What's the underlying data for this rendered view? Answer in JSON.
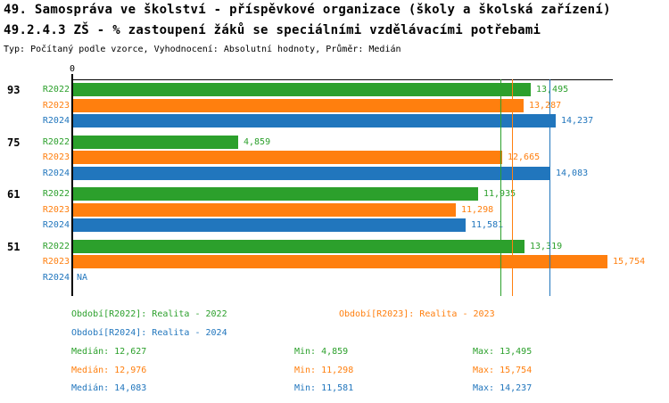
{
  "title": {
    "line1": "49. Samospráva ve školství - příspěvkové organizace (školy a školská zařízení)",
    "line2": "49.2.4.3 ZŠ - % zastoupení žáků se speciálními vzdělávacími potřebami",
    "meta": "Typ: Počítaný podle vzorce, Vyhodnocení: Absolutní hodnoty, Průměr: Medián"
  },
  "colors": {
    "series_green": "#2ca02c",
    "series_orange": "#ff7f0e",
    "series_blue": "#2176bd",
    "axis": "#000000"
  },
  "chart_data": {
    "type": "bar",
    "orientation": "horizontal",
    "title": "49.2.4.3 ZŠ - % zastoupení žáků se speciálními vzdělávacími potřebami",
    "x_axis": {
      "origin_label": "0",
      "min": 0,
      "max": 15.95,
      "grid": false
    },
    "series": [
      {
        "name": "R2022",
        "color": "#2ca02c"
      },
      {
        "name": "R2023",
        "color": "#ff7f0e"
      },
      {
        "name": "R2024",
        "color": "#2176bd"
      }
    ],
    "groups": [
      {
        "label": "93",
        "values": [
          13.495,
          13.287,
          14.237
        ],
        "value_labels": [
          "13,495",
          "13,287",
          "14,237"
        ]
      },
      {
        "label": "75",
        "values": [
          4.859,
          12.665,
          14.083
        ],
        "value_labels": [
          "4,859",
          "12,665",
          "14,083"
        ]
      },
      {
        "label": "61",
        "values": [
          11.935,
          11.298,
          11.581
        ],
        "value_labels": [
          "11,935",
          "11,298",
          "11,581"
        ]
      },
      {
        "label": "51",
        "values": [
          13.319,
          15.754,
          null
        ],
        "value_labels": [
          "13,319",
          "15,754",
          "NA"
        ]
      }
    ],
    "median_lines": [
      {
        "series": "R2022",
        "value": 12.627,
        "color": "#2ca02c"
      },
      {
        "series": "R2023",
        "value": 12.976,
        "color": "#ff7f0e"
      },
      {
        "series": "R2024",
        "value": 14.083,
        "color": "#2176bd"
      }
    ],
    "legend_position": "bottom"
  },
  "legend": [
    {
      "label": "Období[R2022]: Realita - 2022",
      "color": "#2ca02c"
    },
    {
      "label": "Období[R2023]: Realita - 2023",
      "color": "#ff7f0e"
    },
    {
      "label": "Období[R2024]: Realita - 2024",
      "color": "#2176bd"
    }
  ],
  "stats": [
    {
      "median": "Medián: 12,627",
      "min": "Min: 4,859",
      "max": "Max: 13,495"
    },
    {
      "median": "Medián: 12,976",
      "min": "Min: 11,298",
      "max": "Max: 15,754"
    },
    {
      "median": "Medián: 14,083",
      "min": "Min: 11,581",
      "max": "Max: 14,237"
    }
  ]
}
